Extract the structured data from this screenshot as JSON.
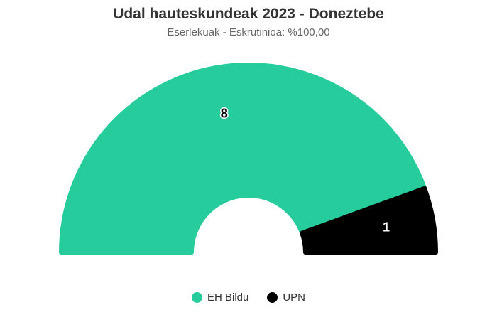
{
  "chart_data": {
    "type": "pie",
    "variant": "semi-donut",
    "title": "Udal hauteskundeak 2023 - Doneztebe",
    "subtitle": "Eserlekuak - Eskrutinioa: %100,00",
    "series": [
      {
        "name": "EH Bildu",
        "value": 8,
        "label": "8",
        "color": "#26CC9C"
      },
      {
        "name": "UPN",
        "value": 1,
        "label": "1",
        "color": "#000000"
      }
    ],
    "legend_position": "bottom-center"
  }
}
